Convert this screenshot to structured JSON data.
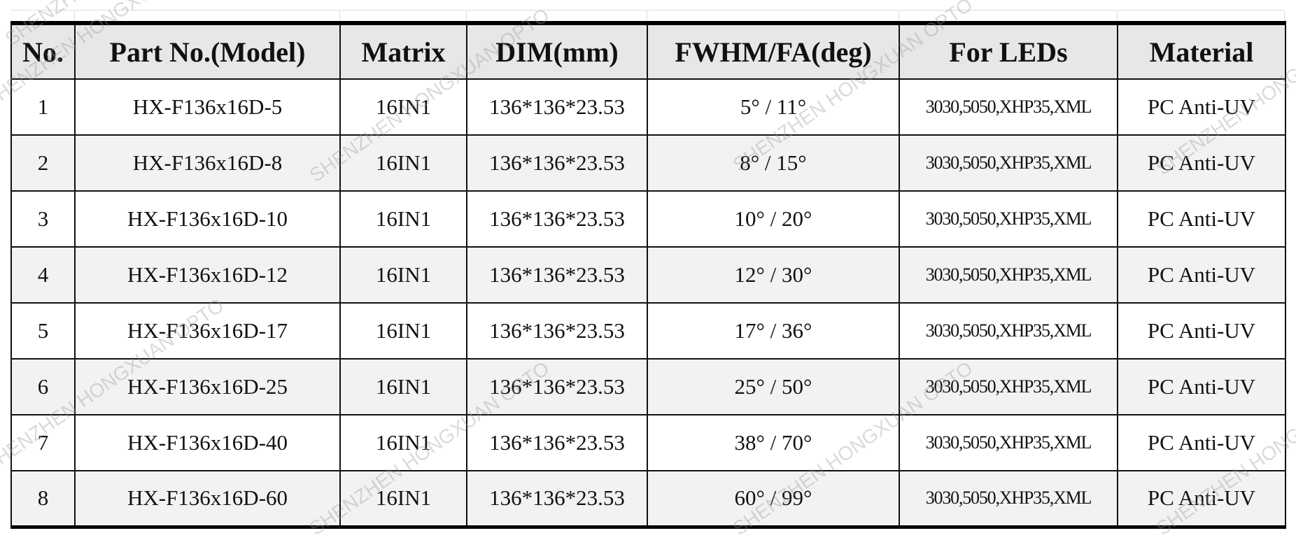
{
  "watermark": "SHENZHEN HONGXUAN OPTO",
  "table": {
    "headers": [
      "No.",
      "Part No.(Model)",
      "Matrix",
      "DIM(mm)",
      "FWHM/FA(deg)",
      "For LEDs",
      "Material"
    ],
    "rows": [
      [
        "1",
        "HX-F136x16D-5",
        "16IN1",
        "136*136*23.53",
        "5° / 11°",
        "3030,5050,XHP35,XML",
        "PC Anti-UV"
      ],
      [
        "2",
        "HX-F136x16D-8",
        "16IN1",
        "136*136*23.53",
        "8° / 15°",
        "3030,5050,XHP35,XML",
        "PC Anti-UV"
      ],
      [
        "3",
        "HX-F136x16D-10",
        "16IN1",
        "136*136*23.53",
        "10° / 20°",
        "3030,5050,XHP35,XML",
        "PC Anti-UV"
      ],
      [
        "4",
        "HX-F136x16D-12",
        "16IN1",
        "136*136*23.53",
        "12° / 30°",
        "3030,5050,XHP35,XML",
        "PC Anti-UV"
      ],
      [
        "5",
        "HX-F136x16D-17",
        "16IN1",
        "136*136*23.53",
        "17° / 36°",
        "3030,5050,XHP35,XML",
        "PC Anti-UV"
      ],
      [
        "6",
        "HX-F136x16D-25",
        "16IN1",
        "136*136*23.53",
        "25° / 50°",
        "3030,5050,XHP35,XML",
        "PC Anti-UV"
      ],
      [
        "7",
        "HX-F136x16D-40",
        "16IN1",
        "136*136*23.53",
        "38° / 70°",
        "3030,5050,XHP35,XML",
        "PC Anti-UV"
      ],
      [
        "8",
        "HX-F136x16D-60",
        "16IN1",
        "136*136*23.53",
        "60° / 99°",
        "3030,5050,XHP35,XML",
        "PC Anti-UV"
      ]
    ]
  }
}
